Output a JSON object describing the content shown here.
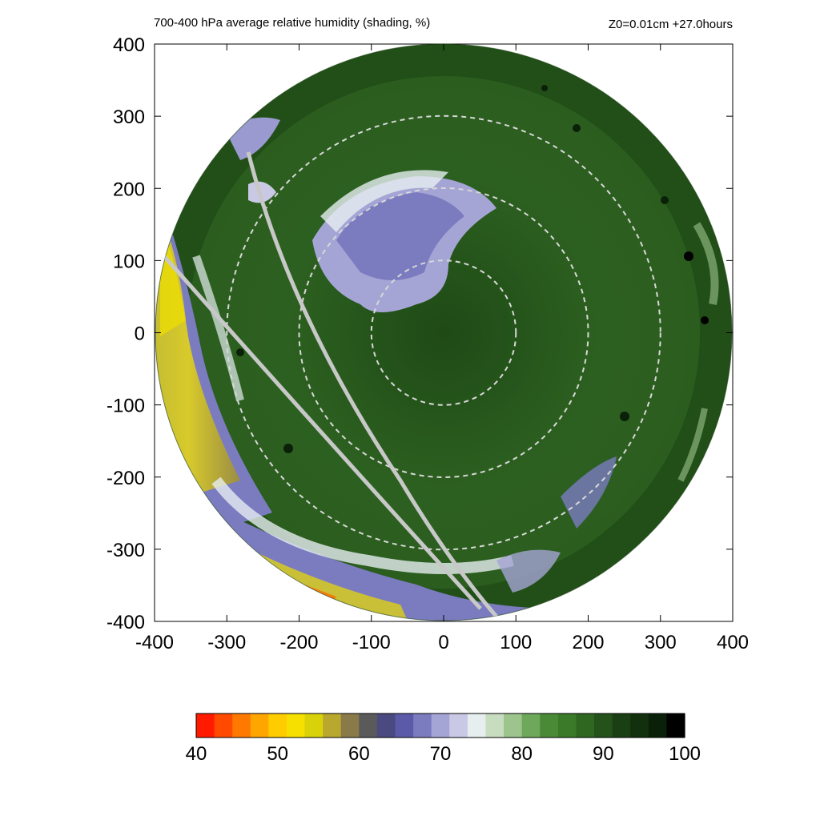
{
  "chart_data": {
    "type": "heatmap",
    "title": "700-400 hPa average relative humidity (shading, %)",
    "subtitle": "Z0=0.01cm  +27.0hours",
    "xlabel": "",
    "ylabel": "",
    "xlim": [
      -400,
      400
    ],
    "ylim": [
      -400,
      400
    ],
    "x_ticks": [
      "-400",
      "-300",
      "-200",
      "-100",
      "0",
      "100",
      "200",
      "300",
      "400"
    ],
    "y_ticks": [
      "400",
      "300",
      "200",
      "100",
      "0",
      "-100",
      "-200",
      "-300",
      "-400"
    ],
    "domain_radius": 400,
    "dashed_circles_radius": [
      100,
      200,
      300
    ],
    "colorbar": {
      "min": 40,
      "max": 100,
      "ticks": [
        "40",
        "50",
        "60",
        "70",
        "80",
        "90",
        "100"
      ],
      "colors": [
        "#ff1a00",
        "#ff4a00",
        "#ff7800",
        "#ffa500",
        "#ffcc00",
        "#f5e000",
        "#d9d20a",
        "#b8a82e",
        "#8a7a4a",
        "#5a5a5a",
        "#4a4a80",
        "#5a5aa8",
        "#7b7bc0",
        "#a5a5d5",
        "#c9c9e6",
        "#e6eef0",
        "#c8dcc0",
        "#9cc48c",
        "#6ea85a",
        "#4a8a36",
        "#3a7a28",
        "#2f6620",
        "#24521a",
        "#1a3f14",
        "#12300e",
        "#0b2008",
        "#000000"
      ]
    },
    "colors": {
      "low_rh": "#f5e000",
      "mid_rh": "#7b7bc0",
      "high_rh": "#2f6620",
      "saturated": "#000000",
      "dashed_circle": "#d8d8d8",
      "track_line": "#c8c8c8"
    }
  }
}
